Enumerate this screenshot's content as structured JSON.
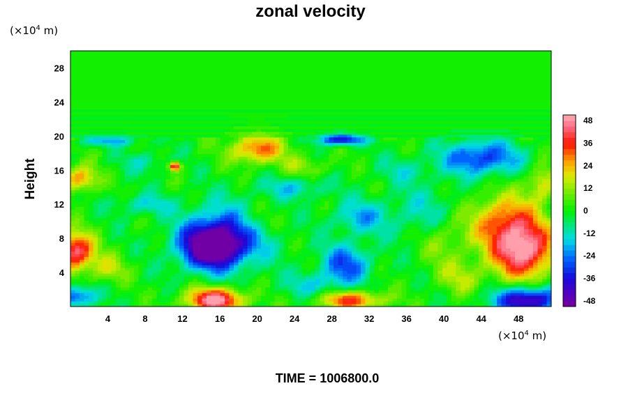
{
  "chart_data": {
    "type": "heatmap",
    "title": "zonal velocity",
    "xlabel": "",
    "ylabel": "Height",
    "x_unit_prefix": "(×10",
    "x_unit_exp": "4",
    "x_unit_suffix": " m)",
    "y_unit_prefix": "(×10",
    "y_unit_exp": "4",
    "y_unit_suffix": " m)",
    "xlim": [
      0,
      51.5
    ],
    "ylim": [
      0,
      30
    ],
    "x_ticks": [
      4,
      8,
      12,
      16,
      20,
      24,
      28,
      32,
      36,
      40,
      44,
      48
    ],
    "x_tick_labels": [
      "4",
      "8",
      "12",
      "16",
      "20",
      "24",
      "28",
      "32",
      "36",
      "40",
      "44",
      "48"
    ],
    "y_ticks": [
      4,
      8,
      12,
      16,
      20,
      24,
      28
    ],
    "y_tick_labels": [
      "4",
      "8",
      "12",
      "16",
      "20",
      "24",
      "28"
    ],
    "colorbar": {
      "range": [
        -51,
        51
      ],
      "ticks": [
        48,
        36,
        24,
        12,
        0,
        -12,
        -24,
        -36,
        -48
      ],
      "tick_labels": [
        "48",
        "36",
        "24",
        "12",
        "0",
        "-12",
        "-24",
        "-36",
        "-48"
      ],
      "levels": 34
    },
    "features": [
      {
        "x": 15,
        "y": 7,
        "value": -50,
        "rx": 3.2,
        "ry": 2.5
      },
      {
        "x": 17,
        "y": 8.5,
        "value": -30,
        "rx": 4.5,
        "ry": 3.5
      },
      {
        "x": 0.5,
        "y": 6.5,
        "value": 45,
        "rx": 2.0,
        "ry": 2.2
      },
      {
        "x": 15.5,
        "y": 0.8,
        "value": 50,
        "rx": 3.0,
        "ry": 1.4
      },
      {
        "x": 30,
        "y": 0.8,
        "value": 35,
        "rx": 3.5,
        "ry": 1.1
      },
      {
        "x": 48.5,
        "y": 6.5,
        "value": 48,
        "rx": 3.2,
        "ry": 3.2
      },
      {
        "x": 46.5,
        "y": 10,
        "value": 30,
        "rx": 3.8,
        "ry": 3.2
      },
      {
        "x": 49,
        "y": 0.8,
        "value": -48,
        "rx": 3.5,
        "ry": 1.5
      },
      {
        "x": 20,
        "y": 18.5,
        "value": 32,
        "rx": 2.8,
        "ry": 1.6
      },
      {
        "x": 11.2,
        "y": 16.5,
        "value": 48,
        "rx": 0.6,
        "ry": 0.5
      },
      {
        "x": 29,
        "y": 19.6,
        "value": -42,
        "rx": 2.3,
        "ry": 0.6
      },
      {
        "x": 44,
        "y": 17.5,
        "value": -32,
        "rx": 4.0,
        "ry": 2.0
      },
      {
        "x": 1,
        "y": 15,
        "value": 28,
        "rx": 1.8,
        "ry": 1.5
      },
      {
        "x": 29.5,
        "y": 5,
        "value": -28,
        "rx": 2.6,
        "ry": 2.3
      },
      {
        "x": 4,
        "y": 4.5,
        "value": 15,
        "rx": 2.0,
        "ry": 1.6
      },
      {
        "x": 31,
        "y": 10.5,
        "value": -18,
        "rx": 3.0,
        "ry": 2.0
      },
      {
        "x": 38,
        "y": 11,
        "value": -12,
        "rx": 4.0,
        "ry": 3.0
      },
      {
        "x": 40,
        "y": 8,
        "value": 12,
        "rx": 2.5,
        "ry": 3.0
      },
      {
        "x": 24,
        "y": 14,
        "value": -15,
        "rx": 3.5,
        "ry": 1.2
      },
      {
        "x": 20,
        "y": 10,
        "value": 12,
        "rx": 2.5,
        "ry": 2.0
      },
      {
        "x": 25,
        "y": 16.5,
        "value": 10,
        "rx": 3.0,
        "ry": 1.3
      },
      {
        "x": 36,
        "y": 16,
        "value": -10,
        "rx": 3.0,
        "ry": 1.5
      },
      {
        "x": 50.5,
        "y": 14.5,
        "value": 20,
        "rx": 1.5,
        "ry": 2.0
      },
      {
        "x": 8,
        "y": 17,
        "value": -10,
        "rx": 2.5,
        "ry": 1.2
      },
      {
        "x": 0.5,
        "y": 1.2,
        "value": -30,
        "rx": 2.2,
        "ry": 1.2
      },
      {
        "x": 26,
        "y": 2.5,
        "value": -14,
        "rx": 3.0,
        "ry": 1.5
      },
      {
        "x": 8,
        "y": 12,
        "value": -14,
        "rx": 3.0,
        "ry": 1.2
      },
      {
        "x": 4,
        "y": 19.5,
        "value": -18,
        "rx": 3.5,
        "ry": 0.6
      },
      {
        "x": 42,
        "y": 3.5,
        "value": 14,
        "rx": 2.5,
        "ry": 2.0
      }
    ]
  },
  "footer": {
    "time_label": "TIME = 1006800.0"
  }
}
